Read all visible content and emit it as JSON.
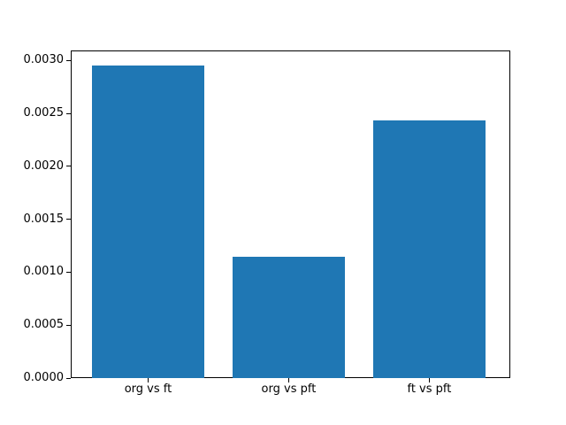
{
  "figure": {
    "background": "#ffffff",
    "spine_color": "#000000",
    "tick_color": "#000000"
  },
  "chart_data": {
    "type": "bar",
    "title": "",
    "xlabel": "",
    "ylabel": "",
    "categories": [
      "org vs ft",
      "org vs pft",
      "ft vs pft"
    ],
    "values": [
      0.00295,
      0.00115,
      0.00243
    ],
    "bar_color": "#1f77b4",
    "bar_width_data_units": 0.8,
    "xlim": [
      -0.55,
      2.576
    ],
    "ylim": [
      0,
      0.003095
    ],
    "yticks": [
      0.0,
      0.0005,
      0.001,
      0.0015,
      0.002,
      0.0025,
      0.003
    ],
    "ytick_labels": [
      "0.0000",
      "0.0005",
      "0.0010",
      "0.0015",
      "0.0020",
      "0.0025",
      "0.0030"
    ],
    "grid": false,
    "legend": "none"
  }
}
